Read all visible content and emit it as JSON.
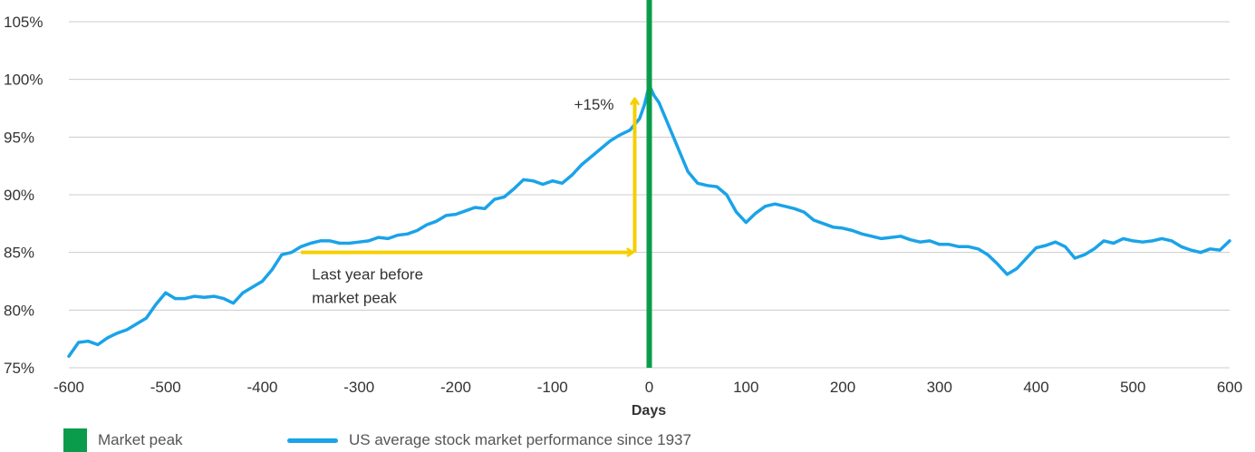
{
  "chart_data": {
    "type": "line",
    "xlabel": "Days",
    "ylabel": "",
    "xlim": [
      -600,
      600
    ],
    "ylim": [
      75,
      105
    ],
    "x_ticks": [
      "-600",
      "-500",
      "-400",
      "-300",
      "-200",
      "-100",
      "0",
      "100",
      "200",
      "300",
      "400",
      "500",
      "600"
    ],
    "y_ticks": [
      "75%",
      "80%",
      "85%",
      "90%",
      "95%",
      "100%",
      "105%"
    ],
    "grid": "horizontal",
    "series": [
      {
        "name": "US average stock market performance since 1937",
        "color": "#1aa3e8",
        "points": [
          [
            -600,
            76.0
          ],
          [
            -590,
            77.2
          ],
          [
            -580,
            77.3
          ],
          [
            -570,
            77.0
          ],
          [
            -560,
            77.6
          ],
          [
            -550,
            78.0
          ],
          [
            -540,
            78.3
          ],
          [
            -530,
            78.8
          ],
          [
            -520,
            79.3
          ],
          [
            -510,
            80.5
          ],
          [
            -500,
            81.5
          ],
          [
            -490,
            81.0
          ],
          [
            -480,
            81.0
          ],
          [
            -470,
            81.2
          ],
          [
            -460,
            81.1
          ],
          [
            -450,
            81.2
          ],
          [
            -440,
            81.0
          ],
          [
            -430,
            80.6
          ],
          [
            -420,
            81.5
          ],
          [
            -410,
            82.0
          ],
          [
            -400,
            82.5
          ],
          [
            -390,
            83.5
          ],
          [
            -380,
            84.8
          ],
          [
            -370,
            85.0
          ],
          [
            -360,
            85.5
          ],
          [
            -350,
            85.8
          ],
          [
            -340,
            86.0
          ],
          [
            -330,
            86.0
          ],
          [
            -320,
            85.8
          ],
          [
            -310,
            85.8
          ],
          [
            -300,
            85.9
          ],
          [
            -290,
            86.0
          ],
          [
            -280,
            86.3
          ],
          [
            -270,
            86.2
          ],
          [
            -260,
            86.5
          ],
          [
            -250,
            86.6
          ],
          [
            -240,
            86.9
          ],
          [
            -230,
            87.4
          ],
          [
            -220,
            87.7
          ],
          [
            -210,
            88.2
          ],
          [
            -200,
            88.3
          ],
          [
            -190,
            88.6
          ],
          [
            -180,
            88.9
          ],
          [
            -170,
            88.8
          ],
          [
            -160,
            89.6
          ],
          [
            -150,
            89.8
          ],
          [
            -140,
            90.5
          ],
          [
            -130,
            91.3
          ],
          [
            -120,
            91.2
          ],
          [
            -110,
            90.9
          ],
          [
            -100,
            91.2
          ],
          [
            -90,
            91.0
          ],
          [
            -80,
            91.7
          ],
          [
            -70,
            92.6
          ],
          [
            -60,
            93.3
          ],
          [
            -50,
            94.0
          ],
          [
            -40,
            94.7
          ],
          [
            -30,
            95.2
          ],
          [
            -20,
            95.6
          ],
          [
            -10,
            96.6
          ],
          [
            -5,
            97.8
          ],
          [
            0,
            99.5
          ],
          [
            5,
            98.6
          ],
          [
            10,
            98.0
          ],
          [
            20,
            96.0
          ],
          [
            30,
            94.0
          ],
          [
            40,
            92.0
          ],
          [
            50,
            91.0
          ],
          [
            60,
            90.8
          ],
          [
            70,
            90.7
          ],
          [
            80,
            90.0
          ],
          [
            90,
            88.5
          ],
          [
            100,
            87.6
          ],
          [
            110,
            88.4
          ],
          [
            120,
            89.0
          ],
          [
            130,
            89.2
          ],
          [
            140,
            89.0
          ],
          [
            150,
            88.8
          ],
          [
            160,
            88.5
          ],
          [
            170,
            87.8
          ],
          [
            180,
            87.5
          ],
          [
            190,
            87.2
          ],
          [
            200,
            87.1
          ],
          [
            210,
            86.9
          ],
          [
            220,
            86.6
          ],
          [
            230,
            86.4
          ],
          [
            240,
            86.2
          ],
          [
            250,
            86.3
          ],
          [
            260,
            86.4
          ],
          [
            270,
            86.1
          ],
          [
            280,
            85.9
          ],
          [
            290,
            86.0
          ],
          [
            300,
            85.7
          ],
          [
            310,
            85.7
          ],
          [
            320,
            85.5
          ],
          [
            330,
            85.5
          ],
          [
            340,
            85.3
          ],
          [
            350,
            84.8
          ],
          [
            360,
            84.0
          ],
          [
            370,
            83.1
          ],
          [
            380,
            83.6
          ],
          [
            390,
            84.5
          ],
          [
            400,
            85.4
          ],
          [
            410,
            85.6
          ],
          [
            420,
            85.9
          ],
          [
            430,
            85.5
          ],
          [
            440,
            84.5
          ],
          [
            450,
            84.8
          ],
          [
            460,
            85.3
          ],
          [
            470,
            86.0
          ],
          [
            480,
            85.8
          ],
          [
            490,
            86.2
          ],
          [
            500,
            86.0
          ],
          [
            510,
            85.9
          ],
          [
            520,
            86.0
          ],
          [
            530,
            86.2
          ],
          [
            540,
            86.0
          ],
          [
            550,
            85.5
          ],
          [
            560,
            85.2
          ],
          [
            570,
            85.0
          ],
          [
            580,
            85.3
          ],
          [
            590,
            85.2
          ],
          [
            600,
            86.0
          ]
        ]
      }
    ],
    "vertical_marker": {
      "x": 0,
      "label": "Market peak",
      "color": "#0a9c4a"
    },
    "annotations": [
      {
        "text": "+15%",
        "type": "vertical-arrow",
        "x": -15,
        "from": 85.0,
        "to": 98.5,
        "color": "#f5cf00"
      },
      {
        "text_lines": [
          "Last year before",
          "market peak"
        ],
        "type": "horizontal-arrow",
        "from": -360,
        "to": -15,
        "y": 85.0,
        "color": "#f5cf00"
      }
    ]
  },
  "legend": {
    "items": [
      {
        "label": "Market peak",
        "color": "#0a9c4a",
        "kind": "box"
      },
      {
        "label": "US average stock market performance since 1937",
        "color": "#1aa3e8",
        "kind": "line"
      }
    ]
  }
}
